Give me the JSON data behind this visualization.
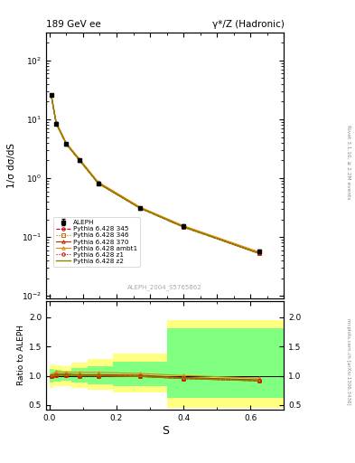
{
  "title_left": "189 GeV ee",
  "title_right": "γ*/Z (Hadronic)",
  "ylabel_main": "1/σ dσ/dS",
  "ylabel_ratio": "Ratio to ALEPH",
  "xlabel": "S",
  "rivet_label": "Rivet 3.1.10, ≥ 2.2M events",
  "mcplots_label": "mcplots.cern.ch [arXiv:1306.3436]",
  "analysis_label": "ALEPH_2004_S5765862",
  "x_data": [
    0.005,
    0.02,
    0.05,
    0.09,
    0.145,
    0.27,
    0.4,
    0.625
  ],
  "aleph_y": [
    26.0,
    8.5,
    3.8,
    2.0,
    0.82,
    0.31,
    0.155,
    0.058
  ],
  "aleph_yerr": [
    1.2,
    0.4,
    0.18,
    0.1,
    0.04,
    0.015,
    0.01,
    0.004
  ],
  "pythia_345_y": [
    26.0,
    8.5,
    3.8,
    2.0,
    0.82,
    0.31,
    0.148,
    0.053
  ],
  "pythia_346_y": [
    26.0,
    8.5,
    3.8,
    2.0,
    0.82,
    0.31,
    0.148,
    0.053
  ],
  "pythia_370_y": [
    26.3,
    8.7,
    3.9,
    2.05,
    0.84,
    0.315,
    0.151,
    0.054
  ],
  "pythia_ambt1_y": [
    27.0,
    9.1,
    4.0,
    2.12,
    0.87,
    0.325,
    0.156,
    0.056
  ],
  "pythia_z1_y": [
    26.0,
    8.5,
    3.8,
    2.0,
    0.82,
    0.31,
    0.148,
    0.053
  ],
  "pythia_z2_y": [
    26.0,
    8.5,
    3.8,
    2.0,
    0.82,
    0.31,
    0.148,
    0.053
  ],
  "ratio_345": [
    1.0,
    1.01,
    1.01,
    1.0,
    1.0,
    0.99,
    0.955,
    0.915
  ],
  "ratio_346": [
    1.0,
    1.01,
    1.01,
    1.0,
    1.0,
    0.99,
    0.955,
    0.915
  ],
  "ratio_370": [
    1.01,
    1.03,
    1.03,
    1.02,
    1.02,
    1.01,
    0.97,
    0.93
  ],
  "ratio_ambt1": [
    1.02,
    1.07,
    1.06,
    1.06,
    1.06,
    1.04,
    1.005,
    0.96
  ],
  "ratio_z1": [
    1.0,
    1.01,
    1.01,
    1.0,
    1.0,
    0.99,
    0.955,
    0.915
  ],
  "ratio_z2": [
    1.0,
    1.01,
    1.01,
    1.0,
    1.0,
    0.99,
    0.955,
    0.915
  ],
  "band_x_edges": [
    0.0,
    0.01,
    0.035,
    0.065,
    0.115,
    0.19,
    0.35,
    0.475,
    0.7
  ],
  "yellow_band_low": [
    0.8,
    0.82,
    0.83,
    0.8,
    0.76,
    0.72,
    0.45,
    0.45
  ],
  "yellow_band_high": [
    1.2,
    1.18,
    1.17,
    1.22,
    1.28,
    1.38,
    1.95,
    1.95
  ],
  "green_band_low": [
    0.88,
    0.9,
    0.91,
    0.88,
    0.85,
    0.82,
    0.62,
    0.62
  ],
  "green_band_high": [
    1.12,
    1.1,
    1.09,
    1.13,
    1.17,
    1.24,
    1.82,
    1.82
  ],
  "color_aleph": "#000000",
  "color_345": "#cc0000",
  "color_346": "#cc6600",
  "color_370": "#cc2200",
  "color_ambt1": "#dd8800",
  "color_z1": "#cc0000",
  "color_z2": "#888800",
  "color_yellow": "#ffff80",
  "color_green": "#80ff80",
  "ylim_main": [
    0.009,
    300
  ],
  "ylim_ratio": [
    0.42,
    2.28
  ],
  "yticks_ratio": [
    0.5,
    1.0,
    1.5,
    2.0
  ],
  "xlim": [
    -0.01,
    0.7
  ]
}
